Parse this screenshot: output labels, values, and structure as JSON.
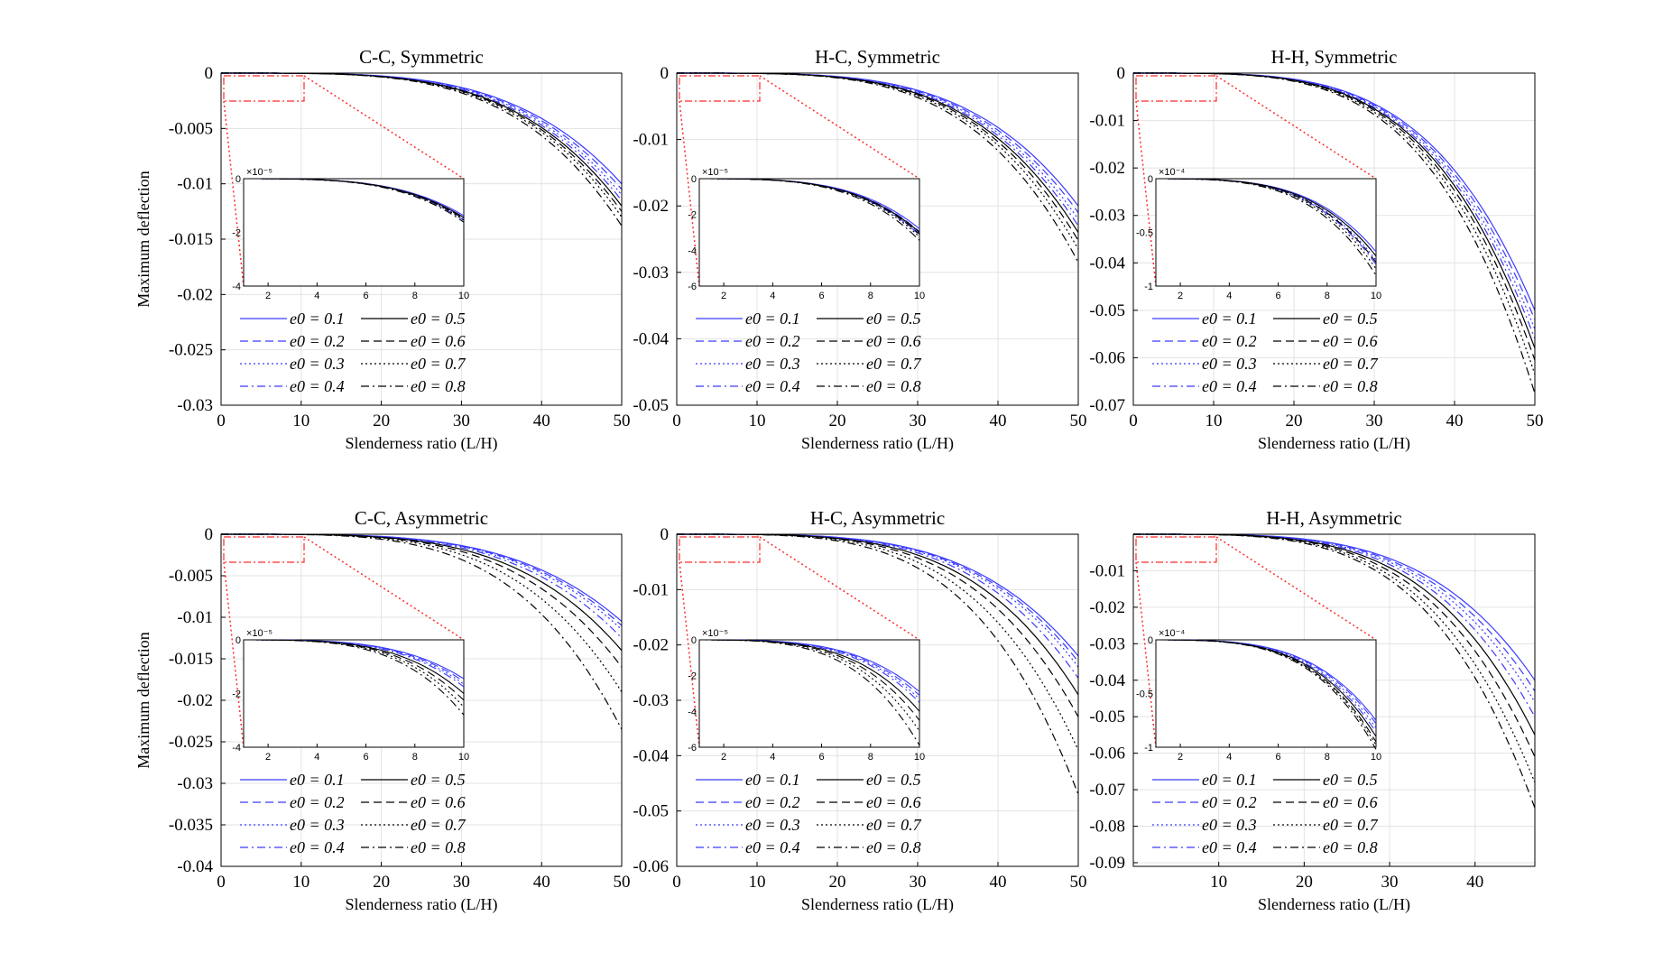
{
  "figure": {
    "ylabel": "Maximum deflection"
  },
  "legend_labels": [
    "e0 = 0.1",
    "e0 = 0.2",
    "e0 = 0.3",
    "e0 = 0.4",
    "e0 = 0.5",
    "e0 = 0.6",
    "e0 = 0.7",
    "e0 = 0.8"
  ],
  "colors": {
    "blue_series": "#3a3aff",
    "black_series": "#000000",
    "zoom_box": "#ff2a2a",
    "grid": "#e3e3e3"
  },
  "chart_data": [
    {
      "id": "cc-sym",
      "type": "line",
      "title": "C-C, Symmetric",
      "xlabel": "Slenderness ratio (L/H)",
      "ylabel": "Maximum deflection",
      "xlim": [
        0,
        50
      ],
      "ylim": [
        -0.03,
        0
      ],
      "xticks": [
        0,
        10,
        20,
        30,
        40,
        50
      ],
      "xtick_labels": [
        "0",
        "10",
        "20",
        "30",
        "40",
        "50"
      ],
      "yticks": [
        0,
        -0.005,
        -0.01,
        -0.015,
        -0.02,
        -0.025,
        -0.03
      ],
      "ytick_labels": [
        "0",
        "-0.005",
        "-0.01",
        "-0.015",
        "-0.02",
        "-0.025",
        "-0.03"
      ],
      "e0": [
        0.1,
        0.2,
        0.3,
        0.4,
        0.5,
        0.6,
        0.7,
        0.8
      ],
      "deflection_at_x50": [
        -0.01,
        -0.0105,
        -0.011,
        -0.0115,
        -0.012,
        -0.0125,
        -0.013,
        -0.0138
      ],
      "inset": {
        "xlim": [
          1,
          10
        ],
        "ylim": [
          -4,
          0
        ],
        "xtick_labels": [
          "2",
          "4",
          "6",
          "8",
          "10"
        ],
        "ytick_labels": [
          "0",
          "-2",
          "-4"
        ],
        "yticks": [
          0,
          -2,
          -4
        ],
        "exponent": "×10⁻⁵",
        "exp_label": "-5",
        "values_at_x10": [
          -1.38,
          -1.45,
          -1.5,
          -1.55,
          -1.45,
          -1.5,
          -1.55,
          -1.62
        ]
      }
    },
    {
      "id": "hc-sym",
      "type": "line",
      "title": "H-C, Symmetric",
      "xlabel": "Slenderness ratio (L/H)",
      "ylabel": "",
      "xlim": [
        0,
        50
      ],
      "ylim": [
        -0.05,
        0
      ],
      "xticks": [
        0,
        10,
        20,
        30,
        40,
        50
      ],
      "xtick_labels": [
        "0",
        "10",
        "20",
        "30",
        "40",
        "50"
      ],
      "yticks": [
        0,
        -0.01,
        -0.02,
        -0.03,
        -0.04,
        -0.05
      ],
      "ytick_labels": [
        "0",
        "-0.01",
        "-0.02",
        "-0.03",
        "-0.04",
        "-0.05"
      ],
      "e0": [
        0.1,
        0.2,
        0.3,
        0.4,
        0.5,
        0.6,
        0.7,
        0.8
      ],
      "deflection_at_x50": [
        -0.02,
        -0.021,
        -0.022,
        -0.023,
        -0.024,
        -0.0252,
        -0.0265,
        -0.0285
      ],
      "inset": {
        "xlim": [
          1,
          10
        ],
        "ylim": [
          -6,
          0
        ],
        "xtick_labels": [
          "2",
          "4",
          "6",
          "8",
          "10"
        ],
        "ytick_labels": [
          "0",
          "-2",
          "-4",
          "-6"
        ],
        "yticks": [
          0,
          -2,
          -4,
          -6
        ],
        "exponent": "×10⁻⁵",
        "exp_label": "-5",
        "values_at_x10": [
          -2.8,
          -2.95,
          -3.05,
          -3.15,
          -3.0,
          -3.1,
          -3.25,
          -3.45
        ]
      }
    },
    {
      "id": "hh-sym",
      "type": "line",
      "title": "H-H, Symmetric",
      "xlabel": "Slenderness ratio (L/H)",
      "ylabel": "",
      "xlim": [
        0,
        50
      ],
      "ylim": [
        -0.07,
        0
      ],
      "xticks": [
        0,
        10,
        20,
        30,
        40,
        50
      ],
      "xtick_labels": [
        "0",
        "10",
        "20",
        "30",
        "40",
        "50"
      ],
      "yticks": [
        0,
        -0.01,
        -0.02,
        -0.03,
        -0.04,
        -0.05,
        -0.06,
        -0.07
      ],
      "ytick_labels": [
        "0",
        "-0.01",
        "-0.02",
        "-0.03",
        "-0.04",
        "-0.05",
        "-0.06",
        "-0.07"
      ],
      "e0": [
        0.1,
        0.2,
        0.3,
        0.4,
        0.5,
        0.6,
        0.7,
        0.8
      ],
      "deflection_at_x50": [
        -0.05,
        -0.052,
        -0.054,
        -0.056,
        -0.058,
        -0.0605,
        -0.0635,
        -0.0675
      ],
      "inset": {
        "xlim": [
          1,
          10
        ],
        "ylim": [
          -1,
          0
        ],
        "xtick_labels": [
          "2",
          "4",
          "6",
          "8",
          "10"
        ],
        "ytick_labels": [
          "0",
          "-0.5",
          "-1"
        ],
        "yticks": [
          0,
          -0.5,
          -1
        ],
        "exponent": "×10⁻⁴",
        "exp_label": "-4",
        "values_at_x10": [
          -0.68,
          -0.72,
          -0.76,
          -0.8,
          -0.72,
          -0.78,
          -0.84,
          -0.9
        ]
      }
    },
    {
      "id": "cc-asym",
      "type": "line",
      "title": "C-C, Asymmetric",
      "xlabel": "Slenderness ratio (L/H)",
      "ylabel": "Maximum deflection",
      "xlim": [
        0,
        50
      ],
      "ylim": [
        -0.04,
        0
      ],
      "xticks": [
        0,
        10,
        20,
        30,
        40,
        50
      ],
      "xtick_labels": [
        "0",
        "10",
        "20",
        "30",
        "40",
        "50"
      ],
      "yticks": [
        0,
        -0.005,
        -0.01,
        -0.015,
        -0.02,
        -0.025,
        -0.03,
        -0.035,
        -0.04
      ],
      "ytick_labels": [
        "0",
        "-0.005",
        "-0.01",
        "-0.015",
        "-0.02",
        "-0.025",
        "-0.03",
        "-0.035",
        "-0.04"
      ],
      "e0": [
        0.1,
        0.2,
        0.3,
        0.4,
        0.5,
        0.6,
        0.7,
        0.8
      ],
      "deflection_at_x50": [
        -0.0105,
        -0.011,
        -0.0115,
        -0.0125,
        -0.014,
        -0.016,
        -0.019,
        -0.0235
      ],
      "inset": {
        "xlim": [
          1,
          10
        ],
        "ylim": [
          -4,
          0
        ],
        "xtick_labels": [
          "2",
          "4",
          "6",
          "8",
          "10"
        ],
        "ytick_labels": [
          "0",
          "-2",
          "-4"
        ],
        "yticks": [
          0,
          -2,
          -4
        ],
        "exponent": "×10⁻⁵",
        "exp_label": "-5",
        "values_at_x10": [
          -1.45,
          -1.55,
          -1.65,
          -1.75,
          -2.0,
          -2.25,
          -2.5,
          -2.8
        ]
      }
    },
    {
      "id": "hc-asym",
      "type": "line",
      "title": "H-C, Asymmetric",
      "xlabel": "Slenderness ratio (L/H)",
      "ylabel": "",
      "xlim": [
        0,
        50
      ],
      "ylim": [
        -0.06,
        0
      ],
      "xticks": [
        0,
        10,
        20,
        30,
        40,
        50
      ],
      "xtick_labels": [
        "0",
        "10",
        "20",
        "30",
        "40",
        "50"
      ],
      "yticks": [
        0,
        -0.01,
        -0.02,
        -0.03,
        -0.04,
        -0.05,
        -0.06
      ],
      "ytick_labels": [
        "0",
        "-0.01",
        "-0.02",
        "-0.03",
        "-0.04",
        "-0.05",
        "-0.06"
      ],
      "e0": [
        0.1,
        0.2,
        0.3,
        0.4,
        0.5,
        0.6,
        0.7,
        0.8
      ],
      "deflection_at_x50": [
        -0.022,
        -0.023,
        -0.024,
        -0.026,
        -0.029,
        -0.033,
        -0.039,
        -0.047
      ],
      "inset": {
        "xlim": [
          1,
          10
        ],
        "ylim": [
          -6,
          0
        ],
        "xtick_labels": [
          "2",
          "4",
          "6",
          "8",
          "10"
        ],
        "ytick_labels": [
          "0",
          "-2",
          "-4",
          "-6"
        ],
        "yticks": [
          0,
          -2,
          -4,
          -6
        ],
        "exponent": "×10⁻⁵",
        "exp_label": "-5",
        "values_at_x10": [
          -2.9,
          -3.1,
          -3.3,
          -3.5,
          -4.0,
          -4.5,
          -5.1,
          -5.9
        ]
      }
    },
    {
      "id": "hh-asym",
      "type": "line",
      "title": "H-H, Asymmetric",
      "xlabel": "Slenderness ratio (L/H)",
      "ylabel": "",
      "xlim": [
        0,
        47
      ],
      "ylim": [
        -0.091,
        0
      ],
      "xticks": [
        10,
        20,
        30,
        40
      ],
      "xtick_labels": [
        "10",
        "20",
        "30",
        "40"
      ],
      "yticks": [
        -0.01,
        -0.02,
        -0.03,
        -0.04,
        -0.05,
        -0.06,
        -0.07,
        -0.08,
        -0.09
      ],
      "ytick_labels": [
        "-0.01",
        "-0.02",
        "-0.03",
        "-0.04",
        "-0.05",
        "-0.06",
        "-0.07",
        "-0.08",
        "-0.09"
      ],
      "e0": [
        0.1,
        0.2,
        0.3,
        0.4,
        0.5,
        0.6,
        0.7,
        0.8
      ],
      "deflection_at_x_max": [
        -0.04,
        -0.043,
        -0.046,
        -0.05,
        -0.055,
        -0.061,
        -0.068,
        -0.075
      ],
      "inset": {
        "xlim": [
          1,
          10
        ],
        "ylim": [
          -1,
          0
        ],
        "xtick_labels": [
          "2",
          "4",
          "6",
          "8",
          "10"
        ],
        "ytick_labels": [
          "0",
          "-0.5",
          "-1"
        ],
        "yticks": [
          0,
          -0.5,
          -1
        ],
        "exponent": "×10⁻⁴",
        "exp_label": "-4",
        "values_at_x10": [
          -0.75,
          -0.78,
          -0.82,
          -0.86,
          -0.9,
          -0.95,
          -0.98,
          -1.02
        ]
      }
    }
  ]
}
